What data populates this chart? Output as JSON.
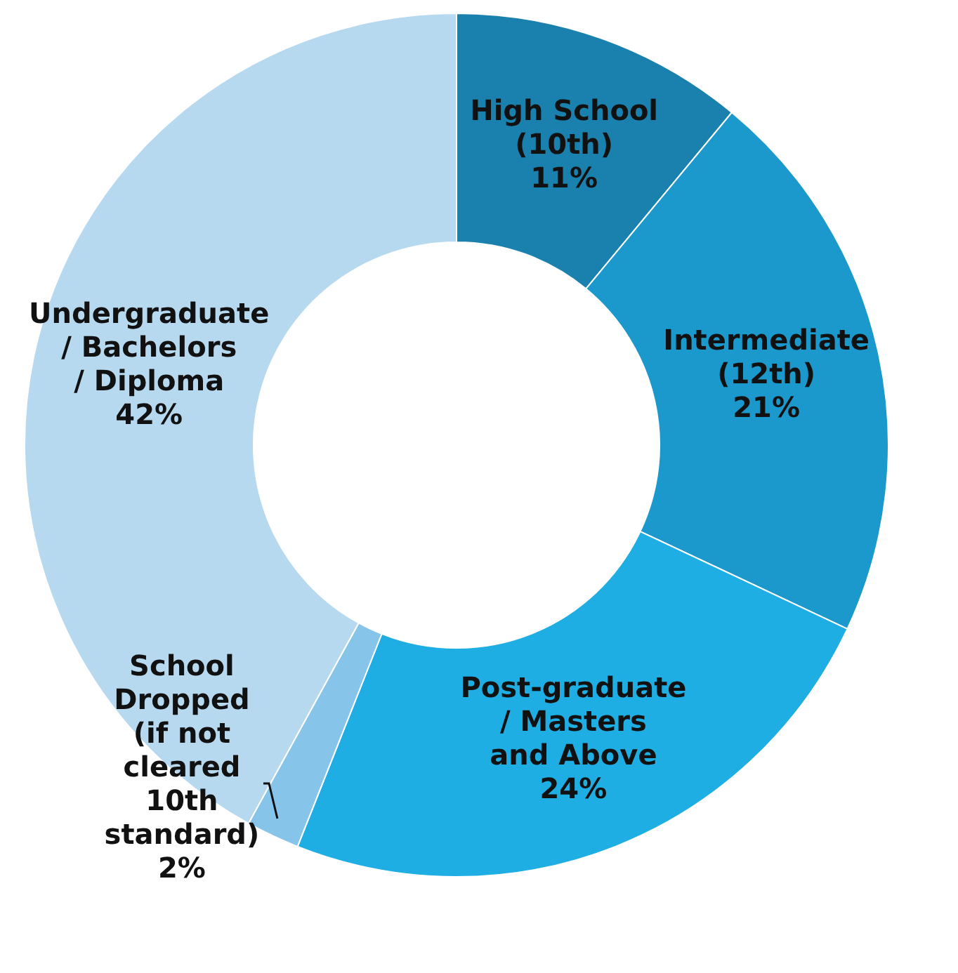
{
  "chart_data": {
    "type": "donut",
    "categories": [
      "High School (10th)",
      "Intermediate (12th)",
      "Post-graduate / Masters and Above",
      "School Dropped (if not cleared 10th standard)",
      "Undergraduate / Bachelors / Diploma"
    ],
    "values": [
      11,
      21,
      24,
      2,
      42
    ],
    "colors": [
      "#1a80ad",
      "#1b99cc",
      "#1faee4",
      "#86c4ea",
      "#b7d9f0"
    ],
    "value_labels": [
      "11%",
      "21%",
      "24%",
      "2%",
      "42%"
    ],
    "legend": false
  }
}
